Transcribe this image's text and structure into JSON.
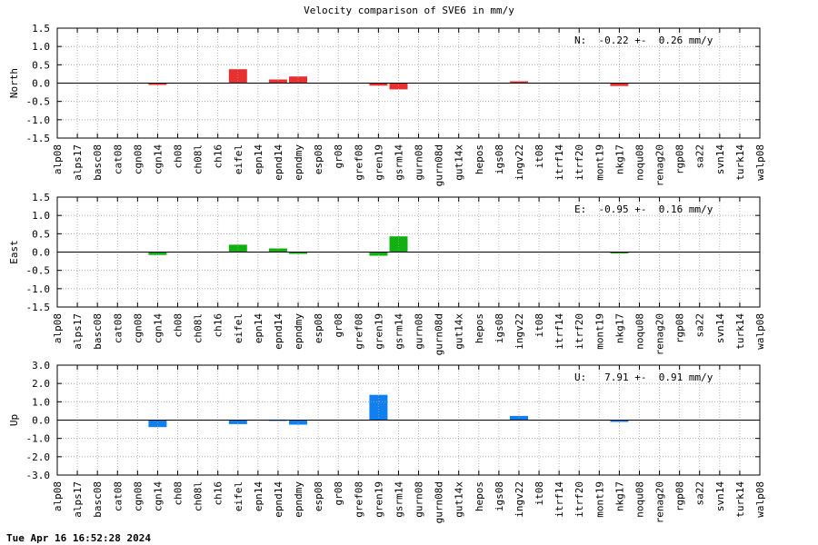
{
  "title": "Velocity comparison of SVE6 in mm/y",
  "timestamp": "Tue Apr 16 16:52:28 2024",
  "chart_data": {
    "type": "bar",
    "categories": [
      "alp08",
      "alps17",
      "basc08",
      "cat08",
      "cgn08",
      "cgn14",
      "ch08",
      "ch08l",
      "ch16",
      "eifel",
      "epn14",
      "epnd14",
      "epndmy",
      "esp08",
      "gr08",
      "gref08",
      "gren19",
      "gsrm14",
      "gurn08",
      "gurn08d",
      "gut14x",
      "hepos",
      "igs08",
      "ingv22",
      "it08",
      "itrf14",
      "itrf20",
      "mont19",
      "nkg17",
      "noqu08",
      "renag20",
      "rgp08",
      "sa22",
      "svn14",
      "turk14",
      "walp08"
    ],
    "panels": [
      {
        "ylabel": "North",
        "ylim": [
          -1.5,
          1.5
        ],
        "yticks": [
          "1.5",
          "1.0",
          "0.5",
          "0.0",
          "-0.5",
          "-1.0",
          "-1.5"
        ],
        "color": "#e83030",
        "annotation": "N:  -0.22 +-  0.26 mm/y",
        "values": [
          null,
          null,
          null,
          null,
          null,
          -0.05,
          null,
          null,
          null,
          0.38,
          null,
          0.1,
          0.18,
          null,
          null,
          null,
          -0.07,
          -0.17,
          null,
          null,
          null,
          null,
          null,
          0.05,
          null,
          null,
          null,
          null,
          -0.08,
          null,
          null,
          null,
          null,
          null,
          null,
          null
        ]
      },
      {
        "ylabel": "East",
        "ylim": [
          -1.5,
          1.5
        ],
        "yticks": [
          "1.5",
          "1.0",
          "0.5",
          "0.0",
          "-0.5",
          "-1.0",
          "-1.5"
        ],
        "color": "#10b010",
        "annotation": "E:  -0.95 +-  0.16 mm/y",
        "values": [
          null,
          null,
          null,
          null,
          null,
          -0.08,
          null,
          null,
          null,
          0.2,
          null,
          0.1,
          -0.05,
          null,
          null,
          null,
          -0.1,
          0.43,
          null,
          null,
          null,
          null,
          null,
          null,
          null,
          null,
          null,
          null,
          -0.03,
          null,
          null,
          null,
          null,
          null,
          null,
          null
        ]
      },
      {
        "ylabel": "Up",
        "ylim": [
          -3.0,
          3.0
        ],
        "yticks": [
          "3.0",
          "2.0",
          "1.0",
          "0.0",
          "-1.0",
          "-2.0",
          "-3.0"
        ],
        "color": "#1080f0",
        "annotation": "U:   7.91 +-  0.91 mm/y",
        "values": [
          null,
          null,
          null,
          null,
          null,
          -0.38,
          null,
          null,
          null,
          -0.22,
          null,
          0.03,
          -0.25,
          null,
          null,
          null,
          1.38,
          null,
          null,
          null,
          null,
          null,
          null,
          0.23,
          null,
          null,
          null,
          null,
          -0.1,
          null,
          null,
          null,
          null,
          null,
          null,
          null
        ]
      }
    ]
  }
}
